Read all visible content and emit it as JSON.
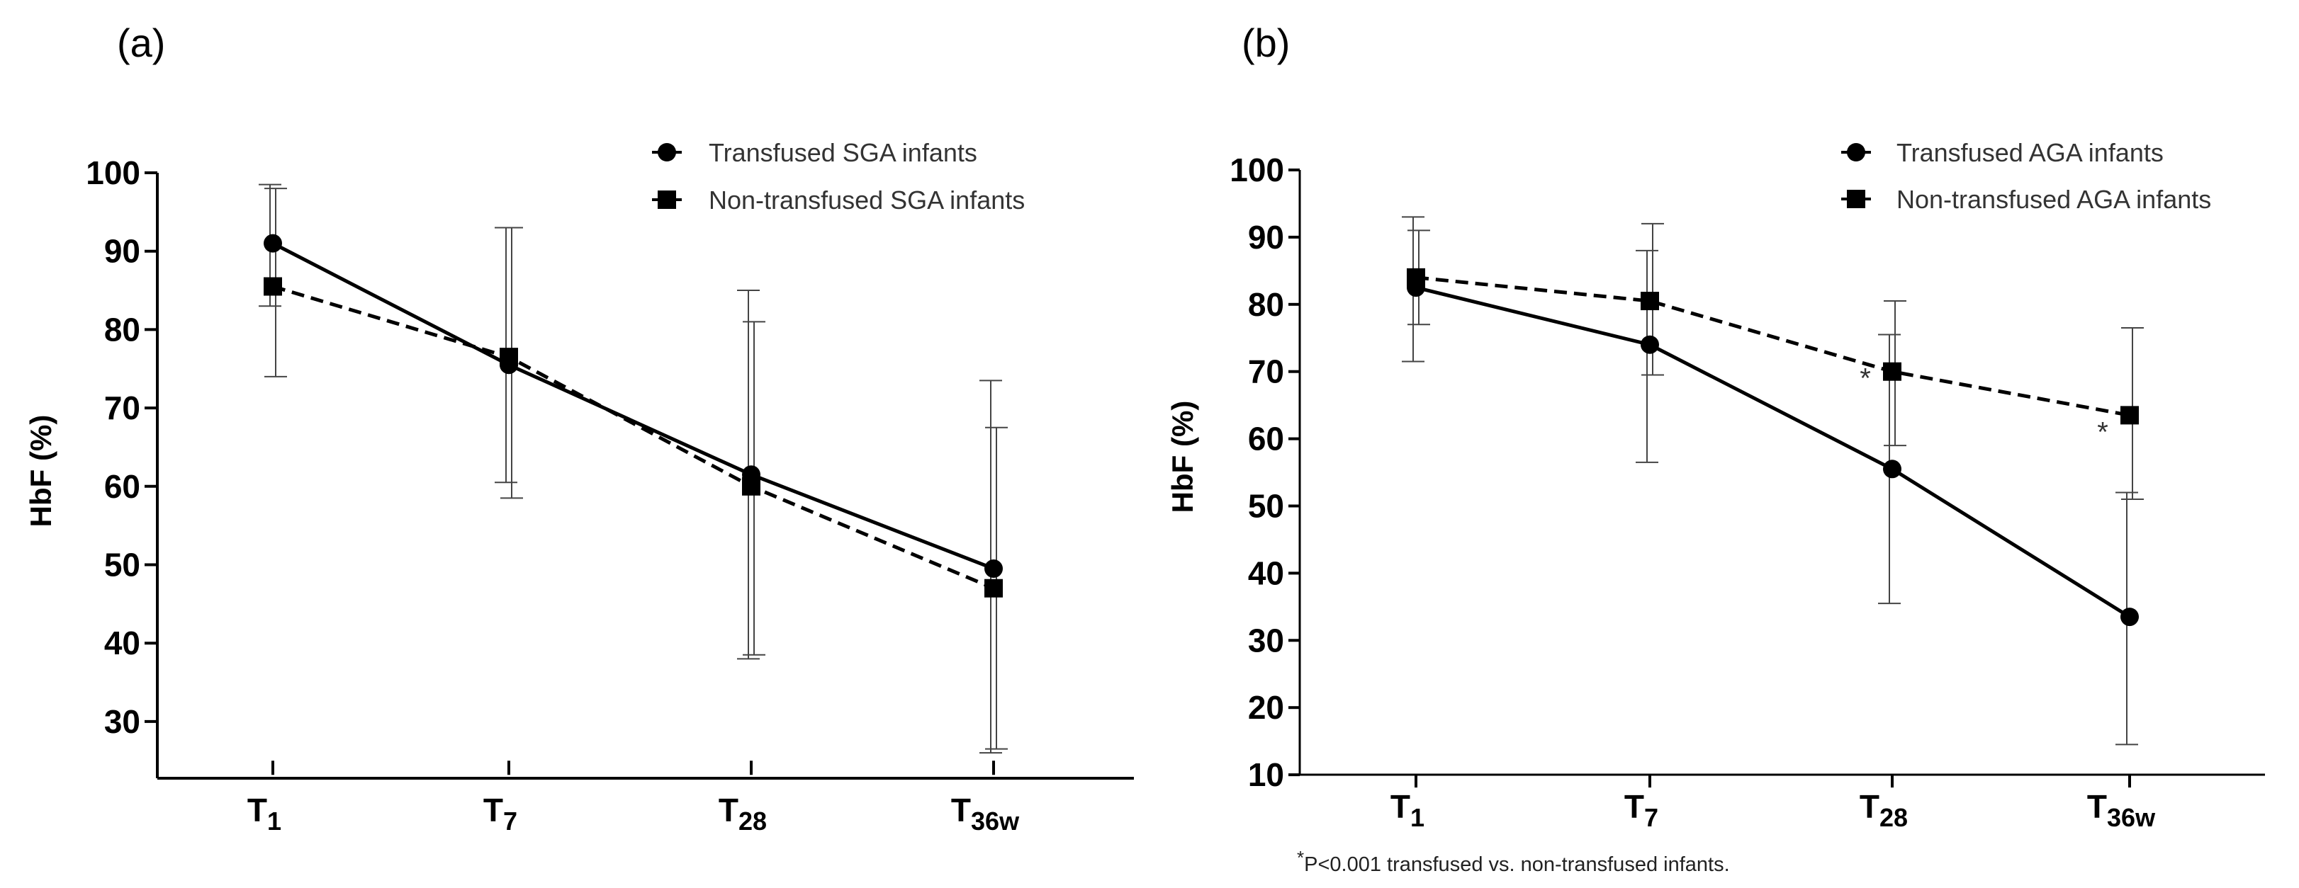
{
  "chart_data": [
    {
      "panel_label": "(a)",
      "type": "line",
      "ylabel": "HbF (%)",
      "ylim": [
        25,
        100
      ],
      "yticks": [
        30,
        40,
        50,
        60,
        70,
        80,
        90,
        100
      ],
      "categories": [
        {
          "base": "T",
          "sub": "1"
        },
        {
          "base": "T",
          "sub": "7"
        },
        {
          "base": "T",
          "sub": "28"
        },
        {
          "base": "T",
          "sub": "36w"
        }
      ],
      "series": [
        {
          "name": "Transfused SGA infants",
          "marker": "circle",
          "line": "solid",
          "values": [
            91,
            75.5,
            61.5,
            49.5
          ],
          "error_low": [
            83,
            60.5,
            38,
            26
          ],
          "error_high": [
            98.5,
            93,
            85,
            73.5
          ]
        },
        {
          "name": "Non-transfused SGA infants",
          "marker": "square",
          "line": "dashed",
          "values": [
            85.5,
            76.5,
            60,
            47
          ],
          "error_low": [
            74,
            58.5,
            38.5,
            26.5
          ],
          "error_high": [
            98,
            93,
            81,
            67.5
          ]
        }
      ],
      "annotations": []
    },
    {
      "panel_label": "(b)",
      "type": "line",
      "ylabel": "HbF (%)",
      "ylim": [
        10,
        100
      ],
      "yticks": [
        10,
        20,
        30,
        40,
        50,
        60,
        70,
        80,
        90,
        100
      ],
      "categories": [
        {
          "base": "T",
          "sub": "1"
        },
        {
          "base": "T",
          "sub": "7"
        },
        {
          "base": "T",
          "sub": "28"
        },
        {
          "base": "T",
          "sub": "36w"
        }
      ],
      "series": [
        {
          "name": "Transfused AGA infants",
          "marker": "circle",
          "line": "solid",
          "values": [
            82.5,
            74,
            55.5,
            33.5
          ],
          "error_low": [
            71.5,
            56.5,
            35.5,
            14.5
          ],
          "error_high": [
            93,
            88,
            75.5,
            52
          ]
        },
        {
          "name": "Non-transfused AGA infants",
          "marker": "square",
          "line": "dashed",
          "values": [
            84,
            80.5,
            70,
            63.5
          ],
          "error_low": [
            77,
            69.5,
            59,
            51
          ],
          "error_high": [
            91,
            92,
            80.5,
            76.5
          ]
        }
      ],
      "annotations": [
        {
          "text": "*",
          "category_index": 2,
          "value": 69.5,
          "side": "left"
        },
        {
          "text": "*",
          "category_index": 3,
          "value": 61.5,
          "side": "left"
        }
      ],
      "footnote": {
        "mark": "*",
        "text": "P<0.001 transfused vs. non-transfused infants."
      }
    }
  ]
}
